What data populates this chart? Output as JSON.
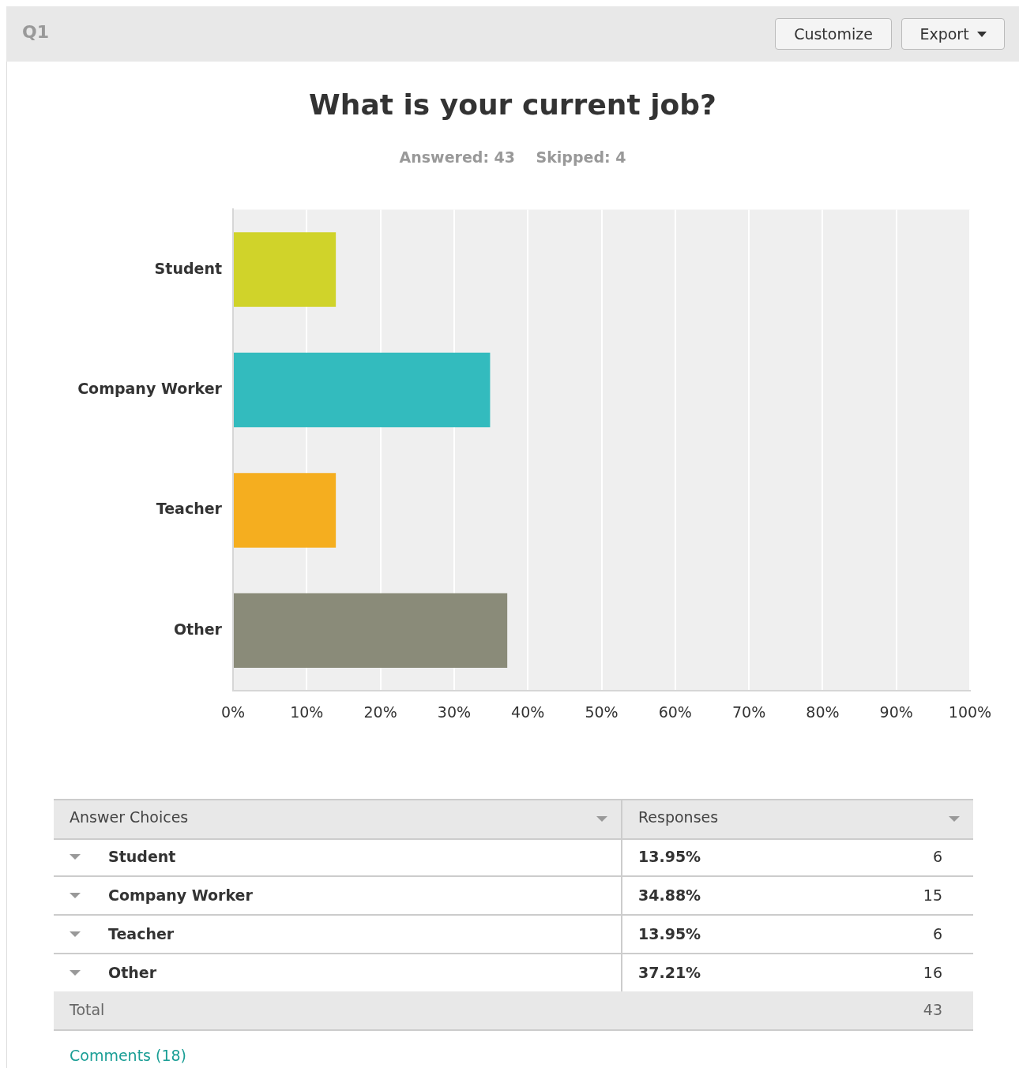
{
  "chart_data": {
    "type": "bar",
    "orientation": "horizontal",
    "title": "What is your current job?",
    "subtitle": "Answered: 43    Skipped: 4",
    "categories": [
      "Student",
      "Company Worker",
      "Teacher",
      "Other"
    ],
    "values": [
      13.95,
      34.88,
      13.95,
      37.21
    ],
    "colors": [
      "#d0d32a",
      "#33bbbe",
      "#f5ae1f",
      "#8a8b79"
    ],
    "xlim": [
      0,
      100
    ],
    "xticks": [
      {
        "value": 0,
        "label": "0%"
      },
      {
        "value": 10,
        "label": "10%"
      },
      {
        "value": 20,
        "label": "20%"
      },
      {
        "value": 30,
        "label": "30%"
      },
      {
        "value": 40,
        "label": "40%"
      },
      {
        "value": 50,
        "label": "50%"
      },
      {
        "value": 60,
        "label": "60%"
      },
      {
        "value": 70,
        "label": "70%"
      },
      {
        "value": 80,
        "label": "80%"
      },
      {
        "value": 90,
        "label": "90%"
      },
      {
        "value": 100,
        "label": "100%"
      }
    ],
    "grid": "x",
    "legend": false,
    "annotations": [
      "Q1",
      "Customize",
      "Export",
      "Answer Choices",
      "Responses",
      "6",
      "15",
      "6",
      "16",
      "Total",
      "43",
      "Comments (18)",
      "13.95%",
      "34.88%",
      "13.95%",
      "37.21%"
    ]
  }
}
